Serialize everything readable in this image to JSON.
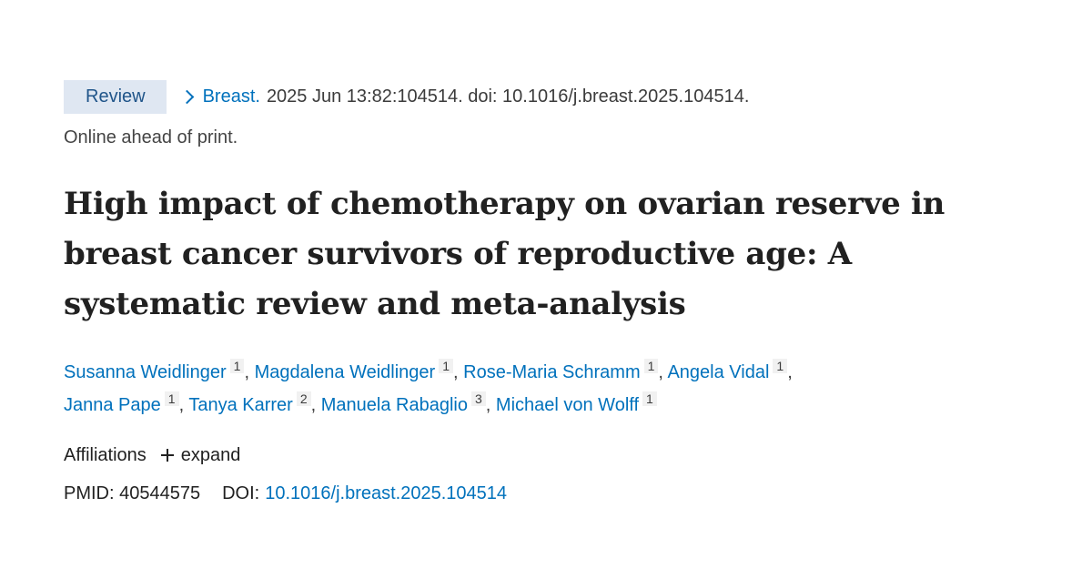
{
  "citation": {
    "type_badge": "Review",
    "journal": "Breast.",
    "details": "2025 Jun 13:82:104514. doi: 10.1016/j.breast.2025.104514.",
    "status": "Online ahead of print."
  },
  "title_lines": [
    "High impact of chemotherapy on ovarian reserve in",
    "breast cancer survivors of reproductive age: A",
    "systematic review and meta-analysis"
  ],
  "authors": [
    {
      "name": "Susanna Weidlinger",
      "aff": "1"
    },
    {
      "name": "Magdalena Weidlinger",
      "aff": "1"
    },
    {
      "name": "Rose-Maria Schramm",
      "aff": "1"
    },
    {
      "name": "Angela Vidal",
      "aff": "1"
    },
    {
      "name": "Janna Pape",
      "aff": "1"
    },
    {
      "name": "Tanya Karrer",
      "aff": "2"
    },
    {
      "name": "Manuela Rabaglio",
      "aff": "3"
    },
    {
      "name": "Michael von Wolff",
      "aff": "1"
    }
  ],
  "affiliations": {
    "label": "Affiliations",
    "expand_label": "expand",
    "expand_icon": "plus-icon"
  },
  "identifiers": {
    "pmid_label": "PMID:",
    "pmid": "40544575",
    "doi_label": "DOI:",
    "doi": "10.1016/j.breast.2025.104514"
  },
  "colors": {
    "link": "#0071bc",
    "badge_bg": "#dfe7f2",
    "badge_text": "#20558a",
    "text": "#212121"
  }
}
